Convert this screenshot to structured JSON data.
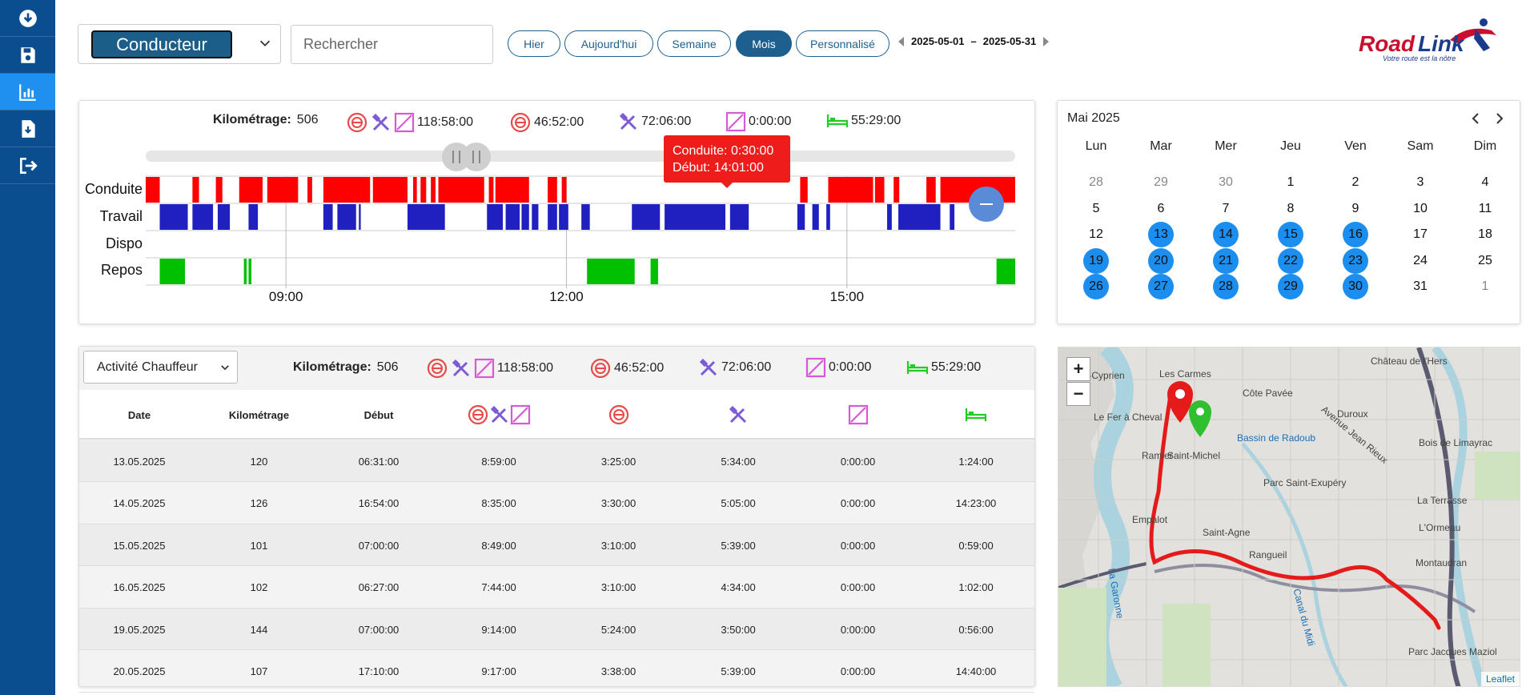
{
  "sidebar": {
    "items": [
      {
        "icon": "download-icon"
      },
      {
        "icon": "save-icon"
      },
      {
        "icon": "chart-icon",
        "active": true
      },
      {
        "icon": "file-download-icon"
      },
      {
        "icon": "logout-icon"
      }
    ]
  },
  "toolbar": {
    "driver_select": "Conducteur",
    "search_placeholder": "Rechercher",
    "periods": [
      {
        "label": "Hier"
      },
      {
        "label": "Aujourd'hui"
      },
      {
        "label": "Semaine"
      },
      {
        "label": "Mois",
        "active": true
      },
      {
        "label": "Personnalisé"
      }
    ],
    "range_start": "2025-05-01",
    "range_sep": "–",
    "range_end": "2025-05-31"
  },
  "logo": {
    "brand": "RoadLink",
    "tagline": "Votre route est la nôtre"
  },
  "summary": {
    "km_label": "Kilométrage:",
    "km_value": "506",
    "total_time": "118:58:00",
    "driving_time": "46:52:00",
    "work_time": "72:06:00",
    "available_time": "0:00:00",
    "rest_time": "55:29:00"
  },
  "timeline": {
    "rows": [
      "Conduite",
      "Travail",
      "Dispo",
      "Repos"
    ],
    "x_ticks": [
      "09:00",
      "12:00",
      "15:00"
    ],
    "tooltip_line1": "Conduite: 0:30:00",
    "tooltip_line2": "Début: 14:01:00",
    "colors": {
      "conduite": "#ff0000",
      "travail": "#2020c0",
      "dispo": "#888888",
      "repos": "#00c000"
    }
  },
  "calendar": {
    "title": "Mai 2025",
    "weekdays": [
      "Lun",
      "Mar",
      "Mer",
      "Jeu",
      "Ven",
      "Sam",
      "Dim"
    ],
    "weeks": [
      [
        {
          "d": "28",
          "m": 1
        },
        {
          "d": "29",
          "m": 1
        },
        {
          "d": "30",
          "m": 1
        },
        {
          "d": "1"
        },
        {
          "d": "2"
        },
        {
          "d": "3"
        },
        {
          "d": "4"
        }
      ],
      [
        {
          "d": "5"
        },
        {
          "d": "6"
        },
        {
          "d": "7"
        },
        {
          "d": "8"
        },
        {
          "d": "9"
        },
        {
          "d": "10"
        },
        {
          "d": "11"
        }
      ],
      [
        {
          "d": "12"
        },
        {
          "d": "13",
          "s": 1
        },
        {
          "d": "14",
          "s": 1
        },
        {
          "d": "15",
          "s": 1
        },
        {
          "d": "16",
          "s": 1
        },
        {
          "d": "17"
        },
        {
          "d": "18"
        }
      ],
      [
        {
          "d": "19",
          "s": 1
        },
        {
          "d": "20",
          "s": 1
        },
        {
          "d": "21",
          "s": 1
        },
        {
          "d": "22",
          "s": 1
        },
        {
          "d": "23",
          "s": 1
        },
        {
          "d": "24"
        },
        {
          "d": "25"
        }
      ],
      [
        {
          "d": "26",
          "s": 1
        },
        {
          "d": "27",
          "s": 1
        },
        {
          "d": "28",
          "s": 1
        },
        {
          "d": "29",
          "s": 1
        },
        {
          "d": "30",
          "s": 1
        },
        {
          "d": "31"
        },
        {
          "d": "1",
          "m": 1
        }
      ]
    ]
  },
  "activity_select": "Activité Chauffeur",
  "table": {
    "headers": [
      "Date",
      "Kilométrage",
      "Début"
    ],
    "rows": [
      [
        "13.05.2025",
        "120",
        "06:31:00",
        "8:59:00",
        "3:25:00",
        "5:34:00",
        "0:00:00",
        "1:24:00"
      ],
      [
        "14.05.2025",
        "126",
        "16:54:00",
        "8:35:00",
        "3:30:00",
        "5:05:00",
        "0:00:00",
        "14:23:00"
      ],
      [
        "15.05.2025",
        "101",
        "07:00:00",
        "8:49:00",
        "3:10:00",
        "5:39:00",
        "0:00:00",
        "0:59:00"
      ],
      [
        "16.05.2025",
        "102",
        "06:27:00",
        "7:44:00",
        "3:10:00",
        "4:34:00",
        "0:00:00",
        "1:02:00"
      ],
      [
        "19.05.2025",
        "144",
        "07:00:00",
        "9:14:00",
        "5:24:00",
        "3:50:00",
        "0:00:00",
        "0:56:00"
      ],
      [
        "20.05.2025",
        "107",
        "17:10:00",
        "9:17:00",
        "3:38:00",
        "5:39:00",
        "0:00:00",
        "14:40:00"
      ]
    ]
  },
  "map": {
    "zoom_in": "+",
    "zoom_out": "−",
    "attribution": "Leaflet",
    "labels": [
      "Saint-Cyprien",
      "Les Carmes",
      "Côte Pavée",
      "Château de l'Hers",
      "Le Fer à Cheval",
      "Duroux",
      "Avenue Jean Rieux",
      "Bassin de Radoub",
      "Bois de Limayrac",
      "Ramier",
      "Saint-Michel",
      "Parc Saint-Exupéry",
      "La Terrasse",
      "Empalot",
      "Saint-Agne",
      "L'Ormeau",
      "Rangueil",
      "Montaudran",
      "La Garonne",
      "Canal du Midi",
      "Parc Jacques Maziol"
    ]
  }
}
